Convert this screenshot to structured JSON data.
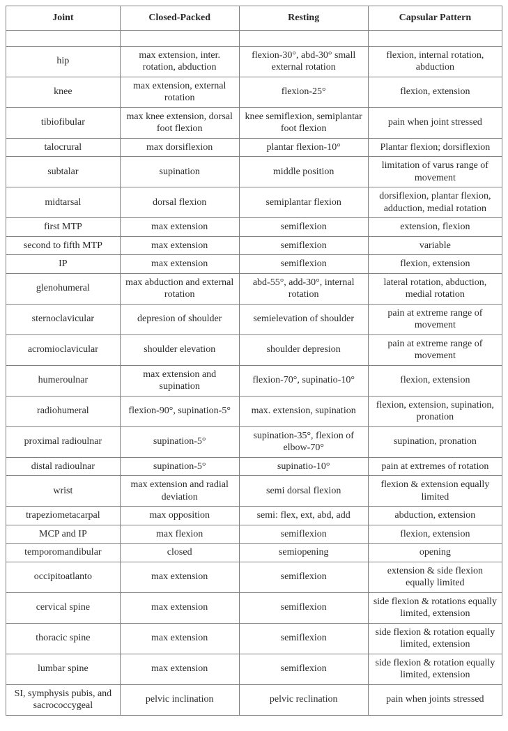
{
  "table": {
    "columns": [
      "Joint",
      "Closed-Packed",
      "Resting",
      "Capsular Pattern"
    ],
    "column_widths_pct": [
      23,
      24,
      26,
      27
    ],
    "border_color": "#808080",
    "text_color": "#2b2b2b",
    "background_color": "#ffffff",
    "font_family": "Times New Roman",
    "header_fontsize": 14,
    "header_fontweight": "bold",
    "cell_fontsize": 14,
    "rows": [
      {
        "joint": "hip",
        "closed_packed": "max extension, inter. rotation, abduction",
        "resting": "flexion-30°, abd-30° small external rotation",
        "capsular": "flexion, internal rotation, abduction"
      },
      {
        "joint": "knee",
        "closed_packed": "max extension, external rotation",
        "resting": "flexion-25°",
        "capsular": "flexion, extension"
      },
      {
        "joint": "tibiofibular",
        "closed_packed": "max knee extension, dorsal foot flexion",
        "resting": "knee semiflexion, semiplantar foot flexion",
        "capsular": "pain when joint stressed"
      },
      {
        "joint": "talocrural",
        "closed_packed": "max dorsiflexion",
        "resting": "plantar flexion-10°",
        "capsular": "Plantar flexion; dorsiflexion"
      },
      {
        "joint": "subtalar",
        "closed_packed": "supination",
        "resting": "middle position",
        "capsular": "limitation of varus range of movement"
      },
      {
        "joint": "midtarsal",
        "closed_packed": "dorsal flexion",
        "resting": "semiplantar flexion",
        "capsular": "dorsiflexion, plantar flexion, adduction, medial rotation"
      },
      {
        "joint": "first MTP",
        "closed_packed": "max extension",
        "resting": "semiflexion",
        "capsular": "extension, flexion"
      },
      {
        "joint": "second to fifth MTP",
        "closed_packed": "max extension",
        "resting": "semiflexion",
        "capsular": "variable"
      },
      {
        "joint": "IP",
        "closed_packed": "max extension",
        "resting": "semiflexion",
        "capsular": "flexion, extension"
      },
      {
        "joint": "glenohumeral",
        "closed_packed": "max abduction and external rotation",
        "resting": "abd-55°, add-30°, internal rotation",
        "capsular": "lateral rotation, abduction, medial rotation"
      },
      {
        "joint": "sternoclavicular",
        "closed_packed": "depresion of shoulder",
        "resting": "semielevation of shoulder",
        "capsular": "pain at extreme range of movement"
      },
      {
        "joint": "acromioclavicular",
        "closed_packed": "shoulder elevation",
        "resting": "shoulder depresion",
        "capsular": "pain at extreme range of movement"
      },
      {
        "joint": "humeroulnar",
        "closed_packed": "max extension and supination",
        "resting": "flexion-70°, supinatio-10°",
        "capsular": "flexion, extension"
      },
      {
        "joint": "radiohumeral",
        "closed_packed": "flexion-90°, supination-5°",
        "resting": "max. extension, supination",
        "capsular": "flexion, extension, supination, pronation"
      },
      {
        "joint": "proximal radioulnar",
        "closed_packed": "supination-5°",
        "resting": "supination-35°, flexion of elbow-70°",
        "capsular": "supination, pronation"
      },
      {
        "joint": "distal radioulnar",
        "closed_packed": "supination-5°",
        "resting": "supinatio-10°",
        "capsular": "pain at extremes of rotation"
      },
      {
        "joint": "wrist",
        "closed_packed": "max extension and radial deviation",
        "resting": "semi dorsal flexion",
        "capsular": "flexion & extension equally limited"
      },
      {
        "joint": "trapeziometacarpal",
        "closed_packed": "max opposition",
        "resting": "semi: flex, ext, abd, add",
        "capsular": "abduction, extension"
      },
      {
        "joint": "MCP and IP",
        "closed_packed": "max flexion",
        "resting": "semiflexion",
        "capsular": "flexion, extension"
      },
      {
        "joint": "temporomandibular",
        "closed_packed": "closed",
        "resting": "semiopening",
        "capsular": "opening"
      },
      {
        "joint": "occipitoatlanto",
        "closed_packed": "max extension",
        "resting": "semiflexion",
        "capsular": "extension & side flexion equally limited"
      },
      {
        "joint": "cervical spine",
        "closed_packed": "max extension",
        "resting": "semiflexion",
        "capsular": "side flexion & rotations equally limited, extension"
      },
      {
        "joint": "thoracic spine",
        "closed_packed": "max extension",
        "resting": "semiflexion",
        "capsular": "side flexion & rotation equally limited, extension"
      },
      {
        "joint": "lumbar spine",
        "closed_packed": "max extension",
        "resting": "semiflexion",
        "capsular": "side flexion & rotation equally limited, extension"
      },
      {
        "joint": "SI, symphysis pubis, and sacrococcygeal",
        "closed_packed": "pelvic inclination",
        "resting": "pelvic reclination",
        "capsular": "pain when joints stressed"
      }
    ]
  }
}
